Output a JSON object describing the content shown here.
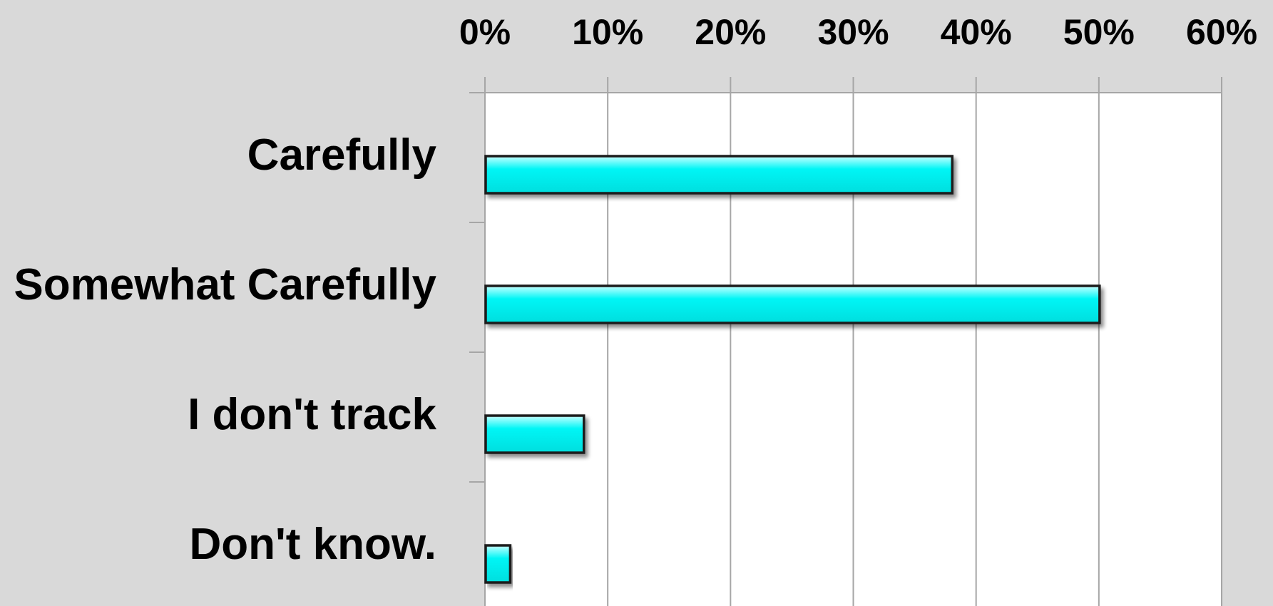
{
  "chart_data": {
    "type": "bar",
    "orientation": "horizontal",
    "categories": [
      "Carefully",
      "Somewhat Carefully",
      "I don't track",
      "Don't know."
    ],
    "values": [
      0.38,
      0.5,
      0.08,
      0.02
    ],
    "x_ticks": [
      "0%",
      "10%",
      "20%",
      "30%",
      "40%",
      "50%",
      "60%"
    ],
    "xlim": [
      0,
      0.6
    ],
    "x_axis_position": "top",
    "grid": true,
    "legend": "none",
    "title": "",
    "xlabel": "",
    "ylabel": ""
  },
  "colors": {
    "background": "#d9d9d9",
    "plot_area": "#ffffff",
    "bar_fill": "#00f5f5",
    "bar_edge": "#1a1a1a",
    "grid": "#a6a6a6"
  }
}
